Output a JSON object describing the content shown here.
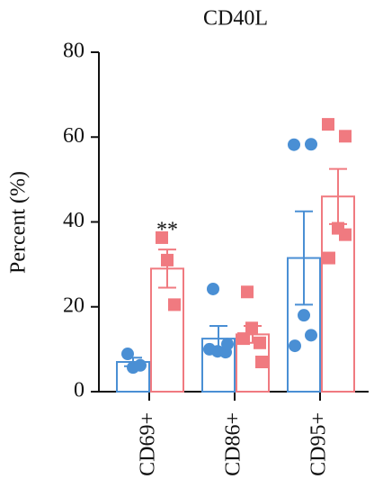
{
  "chart_data": {
    "type": "bar",
    "title": "CD40L",
    "y_label": "Percent (%)",
    "annotation": "**",
    "categories": [
      "CD69+",
      "CD86+",
      "CD95+"
    ],
    "ylim": [
      0,
      80
    ],
    "yticks": [
      0,
      20,
      40,
      60,
      80
    ],
    "series": [
      {
        "color": "#4a8fd4",
        "values": [
          7,
          12.5,
          31.5
        ],
        "errors": [
          1,
          3,
          11
        ],
        "points": [
          [
            8.9,
            5.7,
            6.2
          ],
          [
            24.2,
            9.5,
            9.3,
            10,
            11.2
          ],
          [
            58.2,
            58.3,
            18,
            13.3,
            10.8
          ]
        ]
      },
      {
        "color": "#f07a80",
        "values": [
          29,
          13.5,
          46
        ],
        "errors": [
          4.5,
          2,
          6.5
        ],
        "points": [
          [
            36.3,
            31,
            20.5
          ],
          [
            23.5,
            15,
            11.5,
            12.5,
            7
          ],
          [
            63,
            60.2,
            38.5,
            37,
            31.5
          ]
        ]
      }
    ]
  }
}
